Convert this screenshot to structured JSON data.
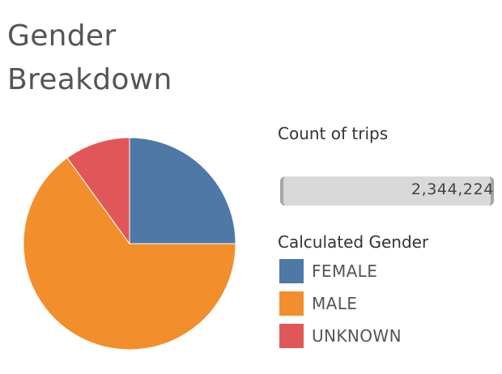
{
  "title_line1": "Gender",
  "title_line2": "Breakdown",
  "measure_label": "Count of trips",
  "range_value": "2,344,224",
  "legend": {
    "title": "Calculated Gender",
    "items": [
      {
        "label": "FEMALE",
        "color": "#4e79a7"
      },
      {
        "label": "MALE",
        "color": "#f28e2b"
      },
      {
        "label": "UNKNOWN",
        "color": "#e15759"
      }
    ]
  },
  "chart_data": {
    "type": "pie",
    "categories": [
      "FEMALE",
      "MALE",
      "UNKNOWN"
    ],
    "values": [
      25,
      65,
      10
    ],
    "colors": [
      "#4e79a7",
      "#f28e2b",
      "#e15759"
    ],
    "title": "Gender Breakdown",
    "total_label": "2,344,224",
    "legend_title": "Calculated Gender",
    "legend": "right"
  }
}
